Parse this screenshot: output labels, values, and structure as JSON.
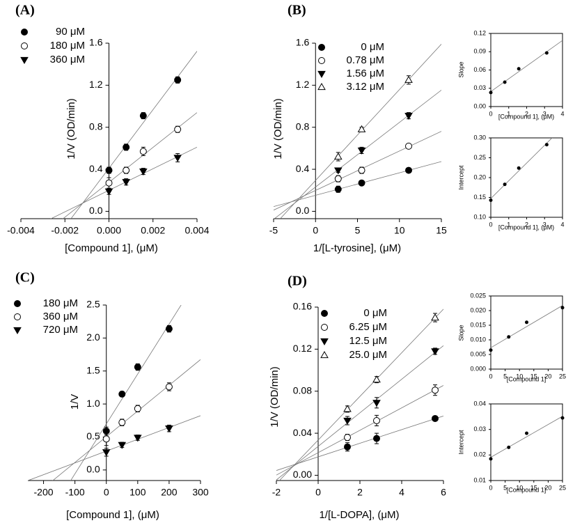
{
  "chart_data": [
    {
      "type": "scatter",
      "label": "(A)",
      "x_label": "[Compound 1], (μM)",
      "y_label": "1/V (OD/min)",
      "frame": false,
      "fit": "linear",
      "xlim": [
        -0.004,
        0.004
      ],
      "xticks": [
        -0.004,
        -0.002,
        {
          "value": 0,
          "label": "0.000"
        },
        0.002,
        0.004
      ],
      "ylim": [
        -0.07,
        1.6
      ],
      "yticks": [
        {
          "value": 0,
          "label": "0.0"
        },
        0.4,
        0.8,
        1.2,
        1.6
      ],
      "x": [
        0,
        0.00078,
        0.00156,
        0.00312
      ],
      "series": [
        {
          "name": "90 μM",
          "marker": "circle",
          "filled": true,
          "color": "#000000",
          "values": [
            0.39,
            0.61,
            0.91,
            1.25
          ],
          "errors": [
            0.03,
            0.03,
            0.03,
            0.03
          ]
        },
        {
          "name": "180 μM",
          "marker": "circle",
          "filled": false,
          "color": "#000000",
          "values": [
            0.27,
            0.39,
            0.57,
            0.78
          ],
          "errors": [
            0.05,
            0.03,
            0.04,
            0.03
          ]
        },
        {
          "name": "360 μM",
          "marker": "triangle-down",
          "filled": true,
          "color": "#000000",
          "values": [
            0.19,
            0.28,
            0.38,
            0.51
          ],
          "errors": [
            0.03,
            0.03,
            0.03,
            0.04
          ]
        }
      ]
    },
    {
      "type": "scatter",
      "label": "(B)",
      "x_label": "1/[L-tyrosine], (μM)",
      "y_label": "1/V (OD/min)",
      "frame": false,
      "fit": "linear",
      "xlim": [
        -5,
        15
      ],
      "xticks": [
        -5,
        0,
        5,
        10,
        15
      ],
      "ylim": [
        -0.07,
        1.6
      ],
      "yticks": [
        {
          "value": 0,
          "label": "0.0"
        },
        0.4,
        0.8,
        1.2,
        1.6
      ],
      "x": [
        2.7,
        5.5,
        11.1
      ],
      "series": [
        {
          "name": "0 μM",
          "marker": "circle",
          "filled": true,
          "color": "#000000",
          "values": [
            0.21,
            0.27,
            0.39
          ],
          "errors": [
            0.03,
            0.02,
            0.02
          ]
        },
        {
          "name": "0.78 μM",
          "marker": "circle",
          "filled": false,
          "color": "#000000",
          "values": [
            0.31,
            0.39,
            0.62
          ],
          "errors": [
            0.03,
            0.03,
            0.02
          ]
        },
        {
          "name": "1.56 μM",
          "marker": "triangle-down",
          "filled": true,
          "color": "#000000",
          "values": [
            0.39,
            0.58,
            0.91
          ],
          "errors": [
            0.02,
            0.03,
            0.03
          ]
        },
        {
          "name": "3.12 μM",
          "marker": "triangle-up",
          "filled": false,
          "color": "#000000",
          "values": [
            0.52,
            0.78,
            1.25
          ],
          "errors": [
            0.04,
            0.02,
            0.04
          ]
        }
      ]
    },
    {
      "type": "scatter",
      "x_label": "[Compound 1], (μM)",
      "y_label": "Slope",
      "frame": true,
      "fit": "linear",
      "xlim": [
        0,
        4
      ],
      "xticks": [
        0,
        1,
        2,
        3,
        4
      ],
      "ylim": [
        0,
        0.12
      ],
      "yticks": [
        {
          "value": 0,
          "label": "0.00"
        },
        0.03,
        0.06,
        0.09,
        0.12
      ],
      "x": [
        0,
        0.78,
        1.56,
        3.12
      ],
      "values": [
        0.023,
        0.04,
        0.062,
        0.088
      ],
      "marker": "circle",
      "filled": true,
      "color": "#000000"
    },
    {
      "type": "scatter",
      "x_label": "[Compound 1], (μM)",
      "y_label": "Intercept",
      "frame": true,
      "fit": "linear",
      "xlim": [
        0,
        4
      ],
      "xticks": [
        0,
        1,
        2,
        3,
        4
      ],
      "ylim": [
        0.1,
        0.3
      ],
      "yticks": [
        {
          "value": 0.1,
          "label": "0.10"
        },
        0.15,
        {
          "value": 0.2,
          "label": "0.20"
        },
        0.25,
        {
          "value": 0.3,
          "label": "0.30"
        }
      ],
      "x": [
        0,
        0.78,
        1.56,
        3.12
      ],
      "values": [
        0.143,
        0.183,
        0.224,
        0.283
      ],
      "marker": "circle",
      "filled": true,
      "color": "#000000"
    },
    {
      "type": "scatter",
      "label": "(C)",
      "x_label": "[Compound 1], (μM)",
      "y_label": "1/V",
      "frame": false,
      "fit": "linear",
      "xlim": [
        -250,
        300
      ],
      "xticks": [
        -200,
        -100,
        0,
        100,
        200,
        300
      ],
      "ylim": [
        -0.16,
        2.5
      ],
      "yticks": [
        {
          "value": 0,
          "label": "0.0"
        },
        0.5,
        {
          "value": 1,
          "label": "1.0"
        },
        1.5,
        {
          "value": 2,
          "label": "2.0"
        },
        2.5
      ],
      "x": [
        0,
        50,
        100,
        200
      ],
      "series": [
        {
          "name": "180 μM",
          "marker": "circle",
          "filled": true,
          "color": "#000000",
          "values": [
            0.59,
            1.15,
            1.56,
            2.14
          ],
          "errors": [
            0.06,
            0.04,
            0.05,
            0.05
          ]
        },
        {
          "name": "360 μM",
          "marker": "circle",
          "filled": false,
          "color": "#000000",
          "values": [
            0.47,
            0.72,
            0.93,
            1.26
          ],
          "errors": [
            0.1,
            0.05,
            0.05,
            0.06
          ]
        },
        {
          "name": "720 μM",
          "marker": "triangle-down",
          "filled": true,
          "color": "#000000",
          "values": [
            0.27,
            0.38,
            0.49,
            0.63
          ],
          "errors": [
            0.06,
            0.04,
            0.04,
            0.05
          ]
        }
      ]
    },
    {
      "type": "scatter",
      "label": "(D)",
      "x_label": "1/[L-DOPA], (μM)",
      "y_label": "1/V (OD/min)",
      "frame": false,
      "fit": "linear",
      "xlim": [
        -2,
        6
      ],
      "xticks": [
        -2,
        0,
        2,
        4,
        6
      ],
      "ylim": [
        -0.005,
        0.16
      ],
      "yticks": [
        {
          "value": 0,
          "label": "0.00"
        },
        0.04,
        0.08,
        0.12,
        0.16
      ],
      "x": [
        1.4,
        2.8,
        5.6
      ],
      "series": [
        {
          "name": "0 μM",
          "marker": "circle",
          "filled": true,
          "color": "#000000",
          "values": [
            0.027,
            0.035,
            0.054
          ],
          "errors": [
            0.004,
            0.005,
            0.002
          ]
        },
        {
          "name": "6.25 μM",
          "marker": "circle",
          "filled": false,
          "color": "#000000",
          "values": [
            0.036,
            0.052,
            0.081
          ],
          "errors": [
            0.003,
            0.005,
            0.005
          ]
        },
        {
          "name": "12.5 μM",
          "marker": "triangle-down",
          "filled": true,
          "color": "#000000",
          "values": [
            0.052,
            0.069,
            0.118
          ],
          "errors": [
            0.004,
            0.005,
            0.003
          ]
        },
        {
          "name": "25.0 μM",
          "marker": "triangle-up",
          "filled": false,
          "color": "#000000",
          "values": [
            0.063,
            0.091,
            0.15
          ],
          "errors": [
            0.003,
            0.003,
            0.004
          ]
        }
      ]
    },
    {
      "type": "scatter",
      "x_label": "[Compound 1]",
      "y_label": "Slope",
      "frame": true,
      "fit": "linear",
      "xlim": [
        0,
        25
      ],
      "xticks": [
        0,
        5,
        10,
        15,
        20,
        25
      ],
      "ylim": [
        0,
        0.025
      ],
      "yticks": [
        {
          "value": 0,
          "label": "0.000"
        },
        0.005,
        {
          "value": 0.01,
          "label": "0.010"
        },
        0.015,
        {
          "value": 0.02,
          "label": "0.020"
        },
        0.025
      ],
      "x": [
        0,
        6.25,
        12.5,
        25
      ],
      "values": [
        0.0065,
        0.011,
        0.016,
        0.021
      ],
      "marker": "circle",
      "filled": true,
      "color": "#000000"
    },
    {
      "type": "scatter",
      "x_label": "[Compound 1]",
      "y_label": "Intercept",
      "frame": true,
      "fit": "linear",
      "xlim": [
        0,
        25
      ],
      "xticks": [
        0,
        5,
        10,
        15,
        20,
        25
      ],
      "ylim": [
        0.01,
        0.04
      ],
      "yticks": [
        0.01,
        0.02,
        0.03,
        0.04
      ],
      "x": [
        0,
        6.25,
        12.5,
        25
      ],
      "values": [
        0.0185,
        0.023,
        0.0285,
        0.0345
      ],
      "marker": "circle",
      "filled": true,
      "color": "#000000"
    }
  ]
}
